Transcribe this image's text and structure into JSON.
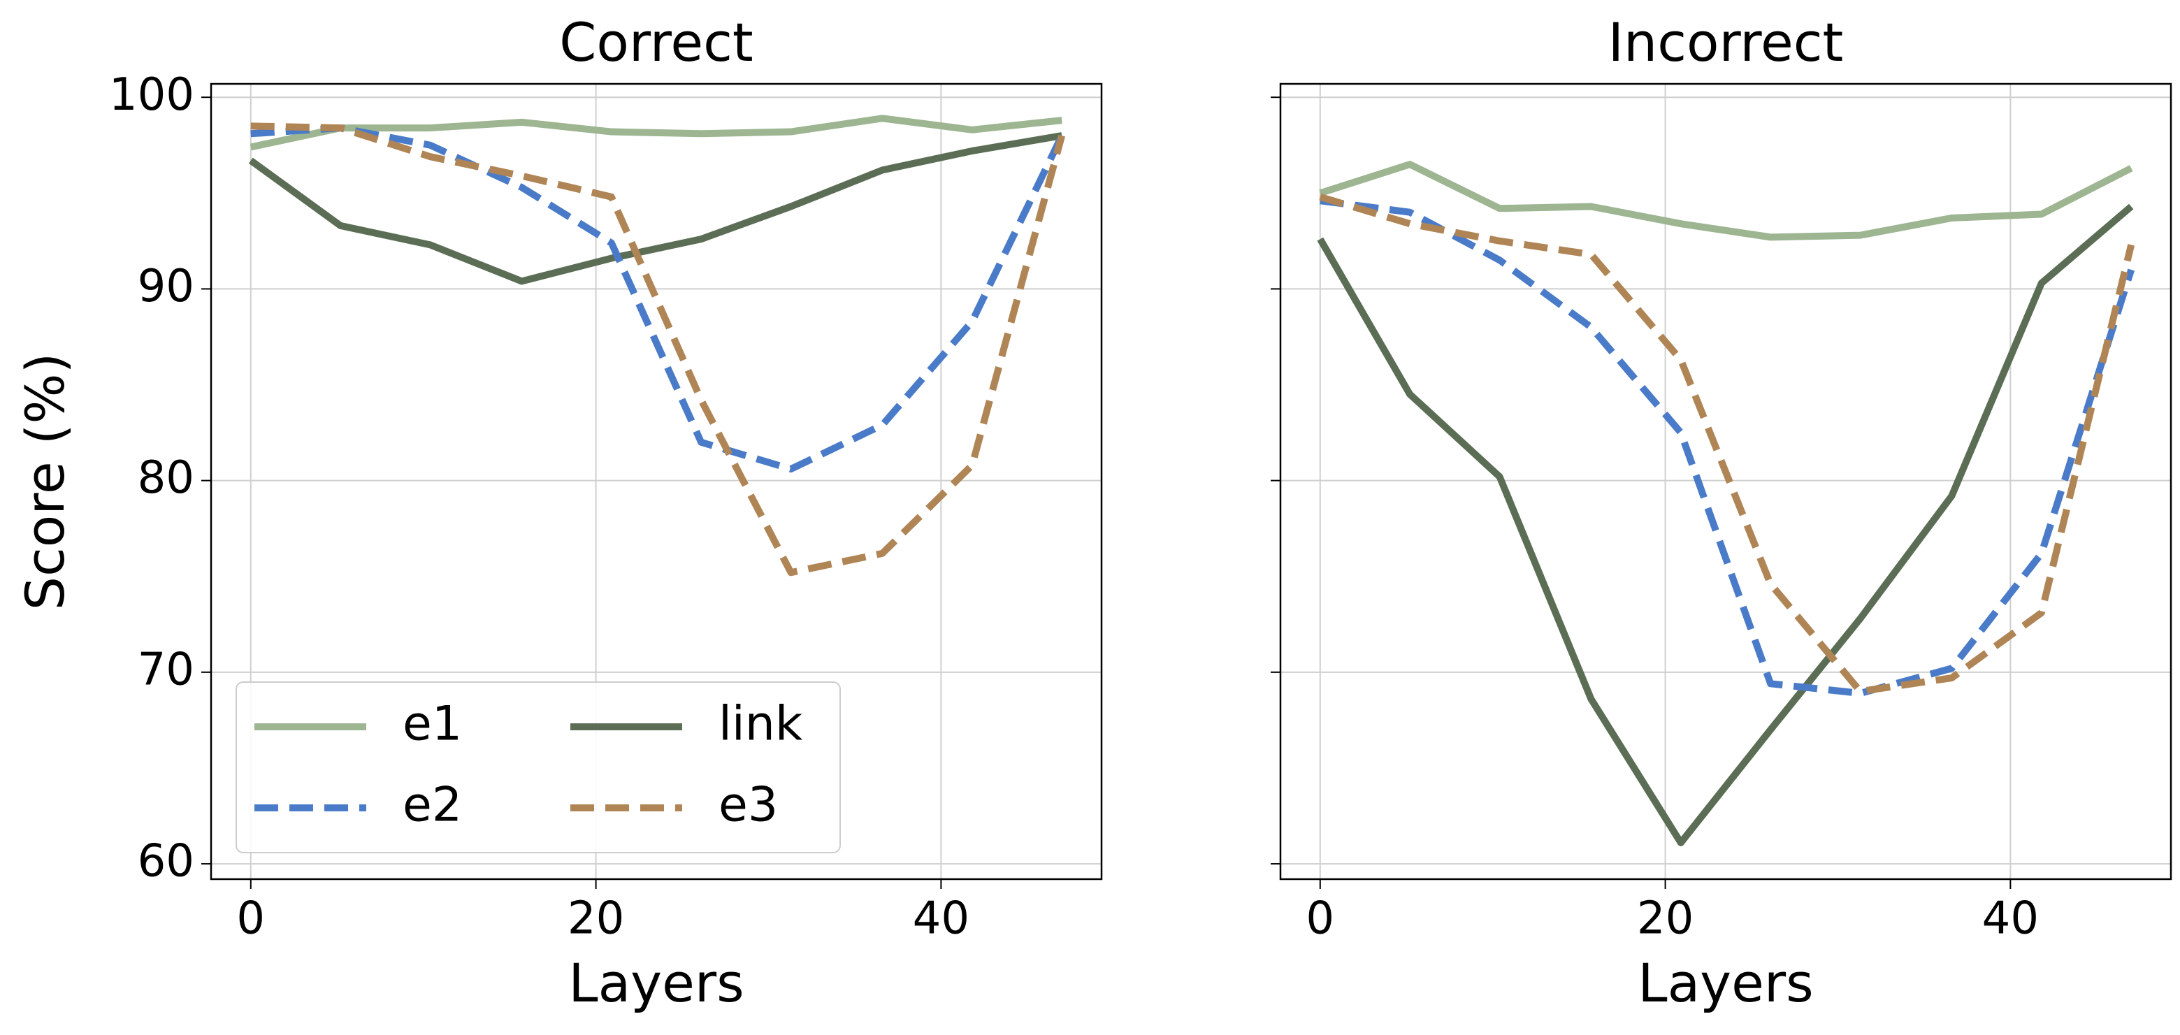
{
  "chart_data": [
    {
      "type": "line",
      "title": "Correct",
      "xlabel": "Layers",
      "ylabel": "Score (%)",
      "x": [
        0,
        5.2,
        10.4,
        15.7,
        20.9,
        26.1,
        31.3,
        36.6,
        41.8,
        47
      ],
      "xlim": [
        -2.3,
        49.3
      ],
      "xticks": [
        0,
        20,
        40
      ],
      "ylim": [
        59.2,
        100.7
      ],
      "yticks": [
        60,
        70,
        80,
        90,
        100
      ],
      "ytick_labels": true,
      "grid": true,
      "legend": "lower left",
      "series": [
        {
          "name": "e1",
          "color": "#9db591",
          "dashed": false,
          "values": [
            97.4,
            98.4,
            98.4,
            98.7,
            98.2,
            98.1,
            98.2,
            98.9,
            98.3,
            98.8
          ]
        },
        {
          "name": "link",
          "color": "#5b6e55",
          "dashed": false,
          "values": [
            96.7,
            93.3,
            92.3,
            90.4,
            91.6,
            92.6,
            94.3,
            96.2,
            97.2,
            98.0
          ]
        },
        {
          "name": "e2",
          "color": "#4a7bc8",
          "dashed": true,
          "values": [
            98.1,
            98.4,
            97.5,
            95.3,
            92.4,
            82.0,
            80.6,
            82.9,
            88.3,
            98.0
          ]
        },
        {
          "name": "e3",
          "color": "#b08556",
          "dashed": true,
          "values": [
            98.5,
            98.4,
            96.9,
            95.9,
            94.8,
            84.2,
            75.2,
            76.2,
            80.8,
            98.0
          ]
        }
      ]
    },
    {
      "type": "line",
      "title": "Incorrect",
      "xlabel": "Layers",
      "x": [
        0,
        5.2,
        10.4,
        15.7,
        20.9,
        26.1,
        31.3,
        36.6,
        41.8,
        47
      ],
      "xlim": [
        -2.3,
        49.3
      ],
      "xticks": [
        0,
        20,
        40
      ],
      "ylim": [
        59.2,
        100.7
      ],
      "yticks": [
        60,
        70,
        80,
        90,
        100
      ],
      "ytick_labels": false,
      "grid": true,
      "series": [
        {
          "color": "#9db591",
          "dashed": false,
          "values": [
            95.0,
            96.5,
            94.2,
            94.3,
            93.4,
            92.7,
            92.8,
            93.7,
            93.9,
            96.3
          ]
        },
        {
          "color": "#5b6e55",
          "dashed": false,
          "values": [
            92.6,
            84.5,
            80.2,
            68.6,
            61.1,
            67.0,
            72.8,
            79.2,
            90.3,
            94.3
          ]
        },
        {
          "color": "#4a7bc8",
          "dashed": true,
          "values": [
            94.6,
            94.0,
            91.5,
            88.0,
            82.5,
            69.4,
            68.9,
            70.2,
            76.2,
            91.0
          ]
        },
        {
          "color": "#b08556",
          "dashed": true,
          "values": [
            94.8,
            93.4,
            92.5,
            91.8,
            86.3,
            74.6,
            69.0,
            69.7,
            73.1,
            92.3
          ]
        }
      ]
    }
  ]
}
